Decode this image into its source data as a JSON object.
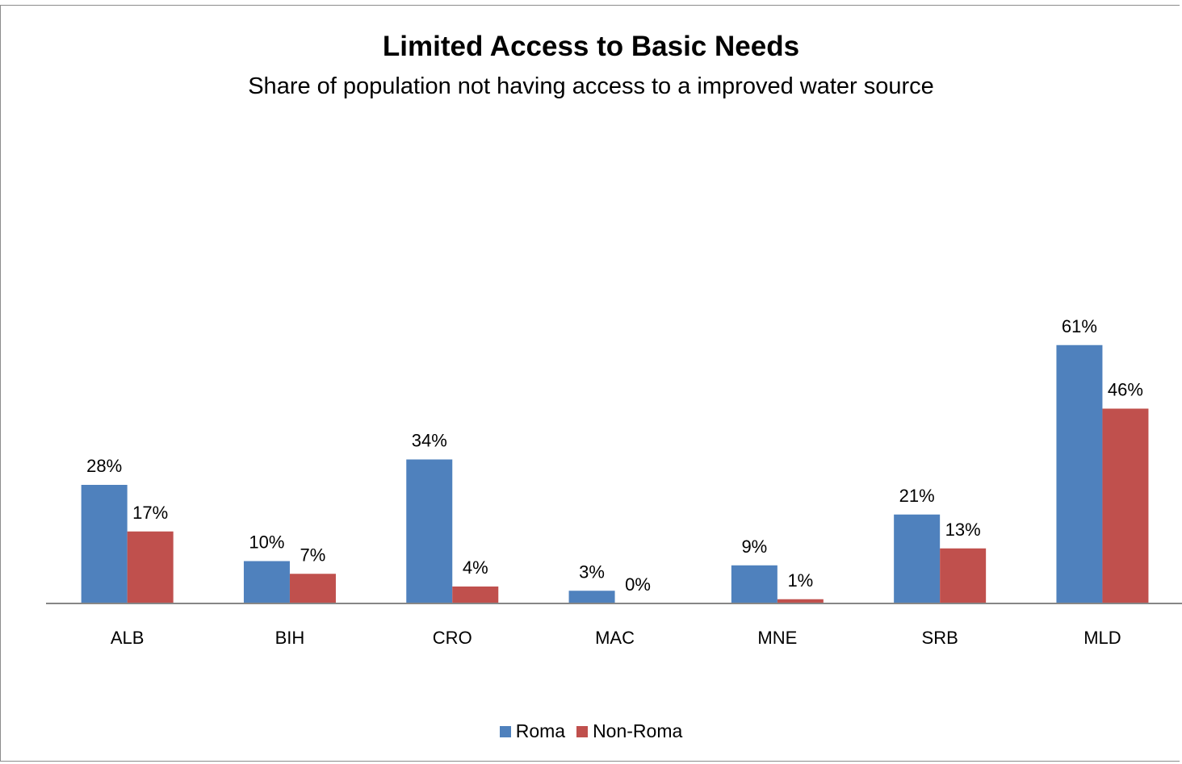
{
  "chart_data": {
    "type": "bar",
    "title": "Limited Access to Basic Needs",
    "subtitle": "Share of population  not having access to a improved water source",
    "categories": [
      "ALB",
      "BIH",
      "CRO",
      "MAC",
      "MNE",
      "SRB",
      "MLD"
    ],
    "series": [
      {
        "name": "Roma",
        "color": "#4f81bd",
        "values": [
          28,
          10,
          34,
          3,
          9,
          21,
          61
        ],
        "labels": [
          "28%",
          "10%",
          "34%",
          "3%",
          "9%",
          "21%",
          "61%"
        ]
      },
      {
        "name": "Non-Roma",
        "color": "#c0504d",
        "values": [
          17,
          7,
          4,
          0,
          1,
          13,
          46
        ],
        "labels": [
          "17%",
          "7%",
          "4%",
          "0%",
          "1%",
          "13%",
          "46%"
        ]
      }
    ],
    "ylim": [
      0,
      100
    ],
    "grid": false,
    "legend": "bottom",
    "value_unit": "%"
  }
}
